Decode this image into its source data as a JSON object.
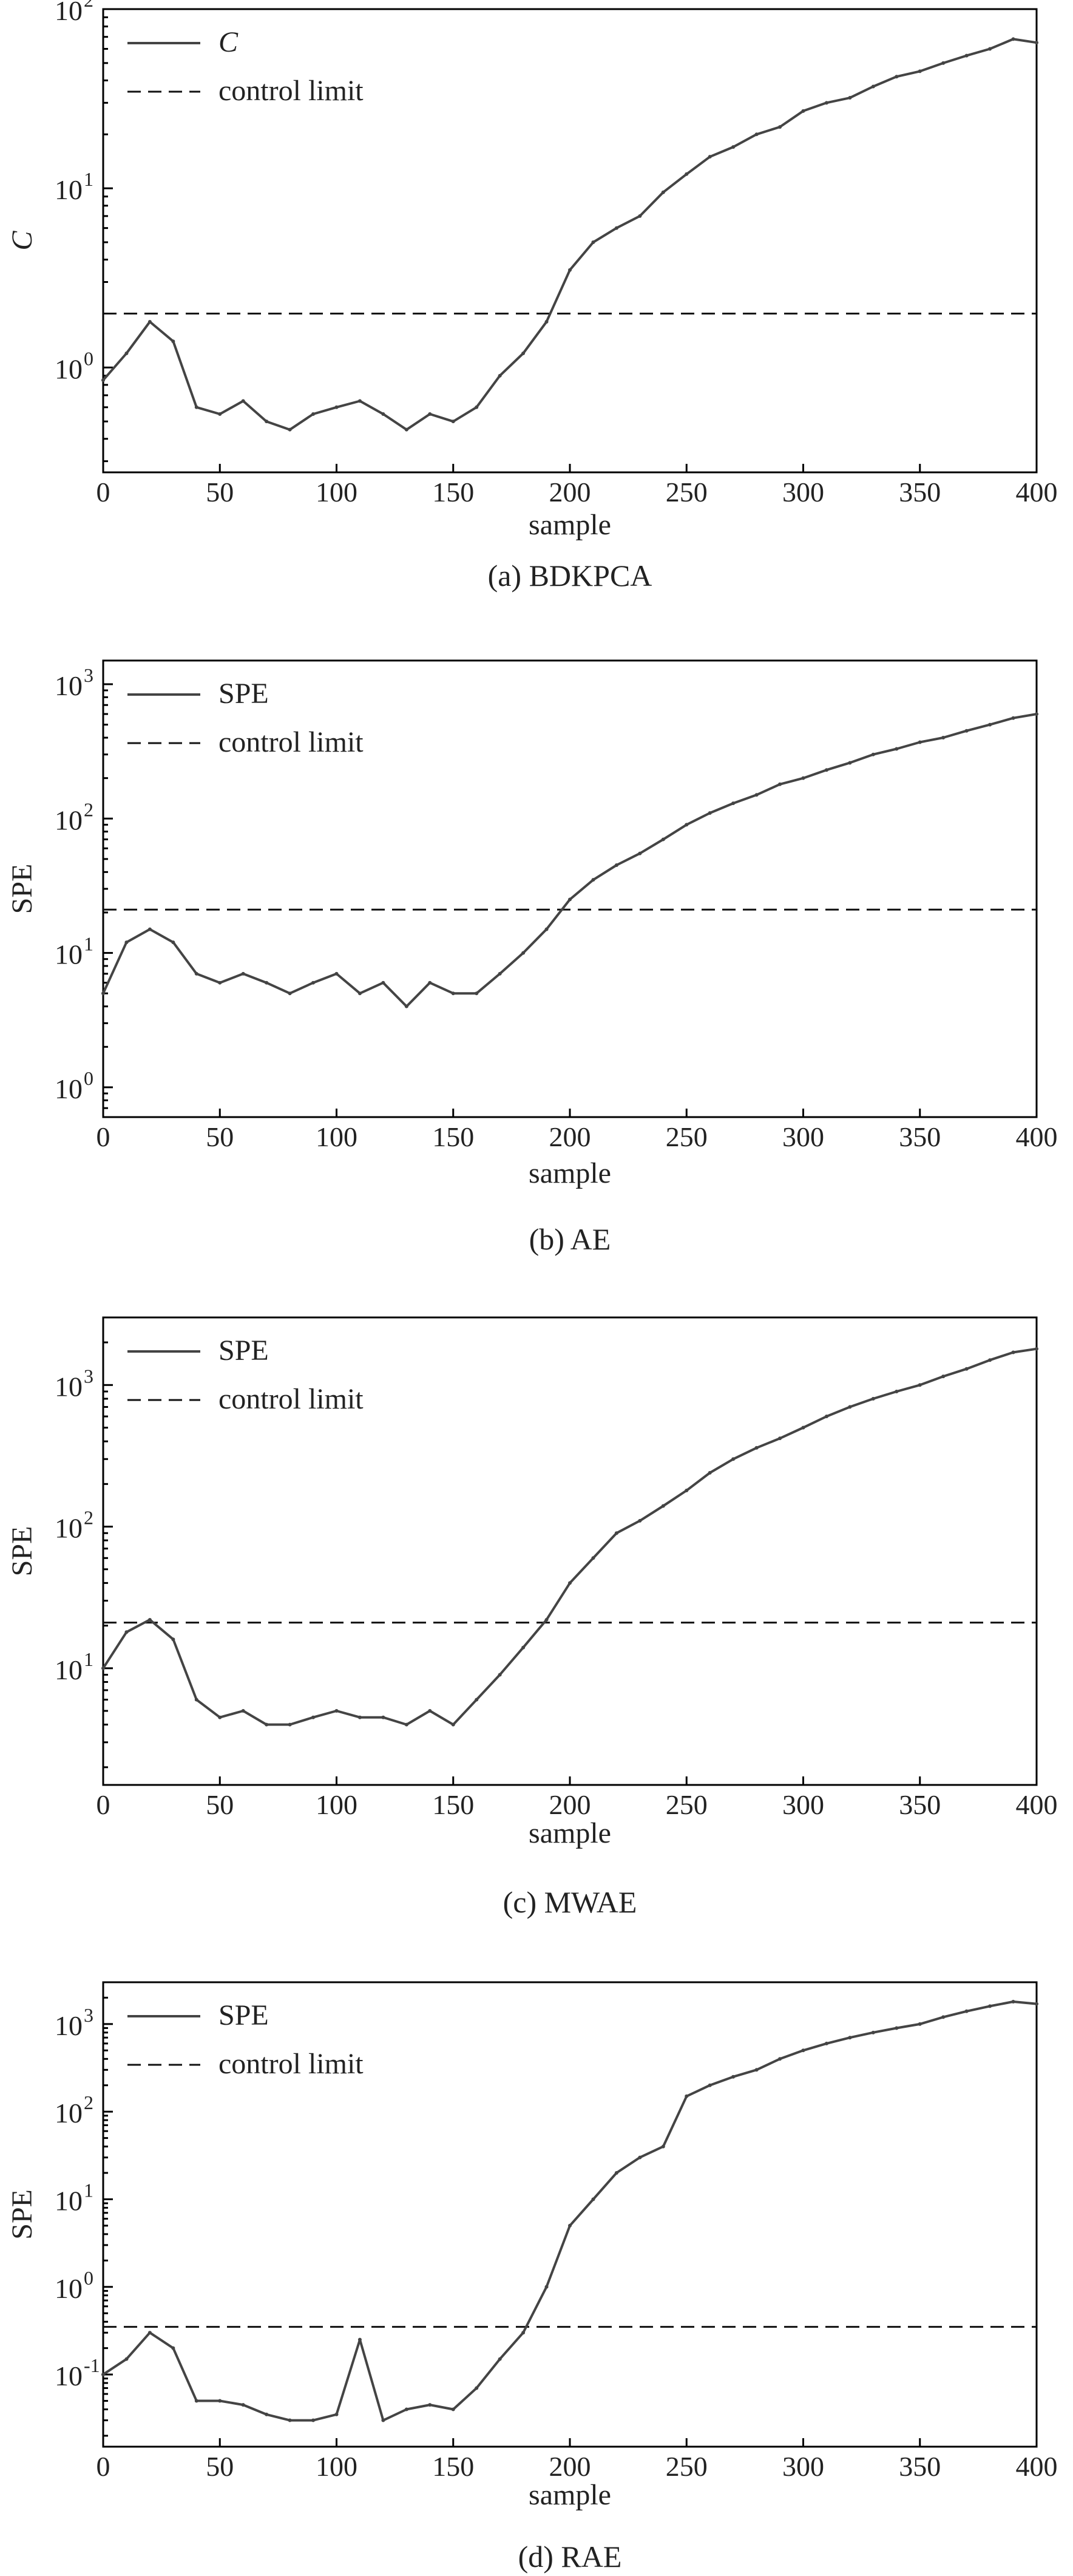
{
  "chart_data": [
    {
      "type": "line",
      "caption": "(a) BDKPCA",
      "xlabel": "sample",
      "ylabel": "C",
      "xlim": [
        0,
        400
      ],
      "xticks": [
        0,
        50,
        100,
        150,
        200,
        250,
        300,
        350,
        400
      ],
      "yscale": "log",
      "ylim": [
        0.26,
        100
      ],
      "yticks": [
        1,
        10,
        100
      ],
      "ytick_labels": [
        {
          "base": "10",
          "exp": "0"
        },
        {
          "base": "10",
          "exp": "1"
        },
        {
          "base": "10",
          "exp": "2"
        }
      ],
      "legend": {
        "position": "top-left",
        "entries": [
          "C",
          "control limit"
        ]
      },
      "grid": false,
      "control_limit": 2.0,
      "series": [
        {
          "name": "C",
          "x": [
            0,
            10,
            20,
            30,
            40,
            50,
            60,
            70,
            80,
            90,
            100,
            110,
            120,
            130,
            140,
            150,
            160,
            170,
            180,
            190,
            200,
            210,
            220,
            230,
            240,
            250,
            260,
            270,
            280,
            290,
            300,
            310,
            320,
            330,
            340,
            350,
            360,
            370,
            380,
            390,
            400
          ],
          "values": [
            0.85,
            1.2,
            1.8,
            1.4,
            0.6,
            0.55,
            0.65,
            0.5,
            0.45,
            0.55,
            0.6,
            0.65,
            0.55,
            0.45,
            0.55,
            0.5,
            0.6,
            0.9,
            1.2,
            1.8,
            3.5,
            5,
            6,
            7,
            9.5,
            12,
            15,
            17,
            20,
            22,
            27,
            30,
            32,
            37,
            42,
            45,
            50,
            55,
            60,
            68,
            65
          ]
        }
      ]
    },
    {
      "type": "line",
      "caption": "(b) AE",
      "xlabel": "sample",
      "ylabel": "SPE",
      "xlim": [
        0,
        400
      ],
      "xticks": [
        0,
        50,
        100,
        150,
        200,
        250,
        300,
        350,
        400
      ],
      "yscale": "log",
      "ylim": [
        0.6,
        1500
      ],
      "yticks": [
        1,
        10,
        100,
        1000
      ],
      "ytick_labels": [
        {
          "base": "10",
          "exp": "0"
        },
        {
          "base": "10",
          "exp": "1"
        },
        {
          "base": "10",
          "exp": "2"
        },
        {
          "base": "10",
          "exp": "3"
        }
      ],
      "legend": {
        "position": "top-left",
        "entries": [
          "SPE",
          "control limit"
        ]
      },
      "grid": false,
      "control_limit": 21,
      "series": [
        {
          "name": "SPE",
          "x": [
            0,
            10,
            20,
            30,
            40,
            50,
            60,
            70,
            80,
            90,
            100,
            110,
            120,
            130,
            140,
            150,
            160,
            170,
            180,
            190,
            200,
            210,
            220,
            230,
            240,
            250,
            260,
            270,
            280,
            290,
            300,
            310,
            320,
            330,
            340,
            350,
            360,
            370,
            380,
            390,
            400
          ],
          "values": [
            5,
            12,
            15,
            12,
            7,
            6,
            7,
            6,
            5,
            6,
            7,
            5,
            6,
            4,
            6,
            5,
            5,
            7,
            10,
            15,
            25,
            35,
            45,
            55,
            70,
            90,
            110,
            130,
            150,
            180,
            200,
            230,
            260,
            300,
            330,
            370,
            400,
            450,
            500,
            560,
            600
          ]
        }
      ]
    },
    {
      "type": "line",
      "caption": "(c) MWAE",
      "xlabel": "sample",
      "ylabel": "SPE",
      "xlim": [
        0,
        400
      ],
      "xticks": [
        0,
        50,
        100,
        150,
        200,
        250,
        300,
        350,
        400
      ],
      "yscale": "log",
      "ylim": [
        1.5,
        3000
      ],
      "yticks": [
        10,
        100,
        1000
      ],
      "ytick_labels": [
        {
          "base": "10",
          "exp": "1"
        },
        {
          "base": "10",
          "exp": "2"
        },
        {
          "base": "10",
          "exp": "3"
        }
      ],
      "legend": {
        "position": "top-left",
        "entries": [
          "SPE",
          "control limit"
        ]
      },
      "grid": false,
      "control_limit": 21,
      "series": [
        {
          "name": "SPE",
          "x": [
            0,
            10,
            20,
            30,
            40,
            50,
            60,
            70,
            80,
            90,
            100,
            110,
            120,
            130,
            140,
            150,
            160,
            170,
            180,
            190,
            200,
            210,
            220,
            230,
            240,
            250,
            260,
            270,
            280,
            290,
            300,
            310,
            320,
            330,
            340,
            350,
            360,
            370,
            380,
            390,
            400
          ],
          "values": [
            10,
            18,
            22,
            16,
            6,
            4.5,
            5,
            4,
            4,
            4.5,
            5,
            4.5,
            4.5,
            4,
            5,
            4,
            6,
            9,
            14,
            22,
            40,
            60,
            90,
            110,
            140,
            180,
            240,
            300,
            360,
            420,
            500,
            600,
            700,
            800,
            900,
            1000,
            1150,
            1300,
            1500,
            1700,
            1800
          ]
        }
      ]
    },
    {
      "type": "line",
      "caption": "(d) RAE",
      "xlabel": "sample",
      "ylabel": "SPE",
      "xlim": [
        0,
        400
      ],
      "xticks": [
        0,
        50,
        100,
        150,
        200,
        250,
        300,
        350,
        400
      ],
      "yscale": "log",
      "ylim": [
        0.015,
        3000
      ],
      "yticks": [
        0.1,
        1,
        10,
        100,
        1000
      ],
      "ytick_labels": [
        {
          "base": "10",
          "exp": "-1"
        },
        {
          "base": "10",
          "exp": "0"
        },
        {
          "base": "10",
          "exp": "1"
        },
        {
          "base": "10",
          "exp": "2"
        },
        {
          "base": "10",
          "exp": "3"
        }
      ],
      "legend": {
        "position": "top-left",
        "entries": [
          "SPE",
          "control limit"
        ]
      },
      "grid": false,
      "control_limit": 0.35,
      "series": [
        {
          "name": "SPE",
          "x": [
            0,
            10,
            20,
            30,
            40,
            50,
            60,
            70,
            80,
            90,
            100,
            110,
            120,
            130,
            140,
            150,
            160,
            170,
            180,
            190,
            200,
            210,
            220,
            230,
            240,
            250,
            260,
            270,
            280,
            290,
            300,
            310,
            320,
            330,
            340,
            350,
            360,
            370,
            380,
            390,
            400
          ],
          "values": [
            0.1,
            0.15,
            0.3,
            0.2,
            0.05,
            0.05,
            0.045,
            0.035,
            0.03,
            0.03,
            0.035,
            0.25,
            0.03,
            0.04,
            0.045,
            0.04,
            0.07,
            0.15,
            0.3,
            1,
            5,
            10,
            20,
            30,
            40,
            150,
            200,
            250,
            300,
            400,
            500,
            600,
            700,
            800,
            900,
            1000,
            1200,
            1400,
            1600,
            1800,
            1700
          ]
        }
      ]
    }
  ]
}
